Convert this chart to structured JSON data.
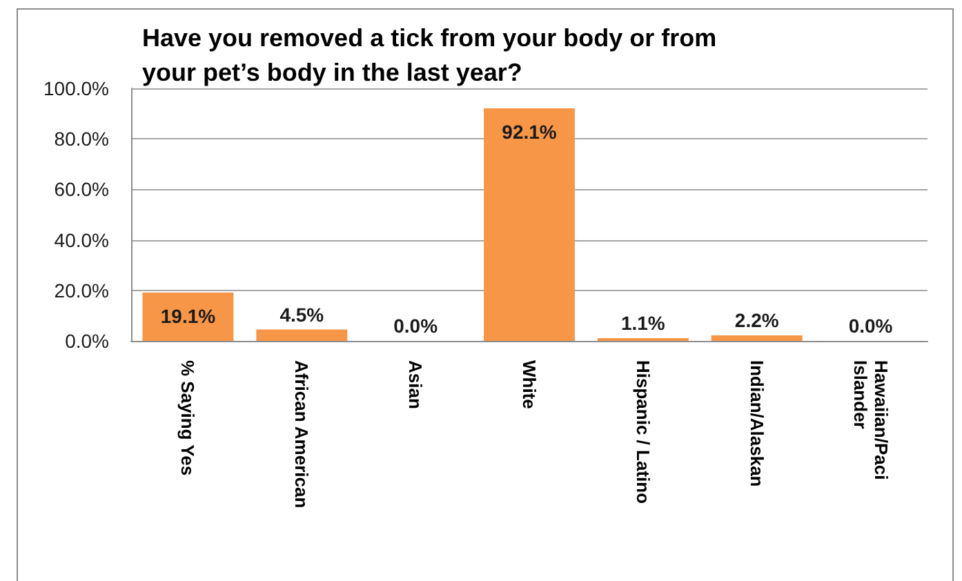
{
  "chart_data": {
    "type": "bar",
    "title": "Have you removed a tick from your body or from your pet’s body in the last year?",
    "categories": [
      "% Saying Yes",
      "African American",
      "Asian",
      "White",
      "Hispanic / Latino",
      "Indian/Alaskan",
      "Hawaiian/Paci Islander"
    ],
    "values": [
      19.1,
      4.5,
      0.0,
      92.1,
      1.1,
      2.2,
      0.0
    ],
    "color": "#f79646",
    "value_labels": [
      "19.1%",
      "4.5%",
      "0.0%",
      "92.1%",
      "1.1%",
      "2.2%",
      "0.0%"
    ],
    "ylim": [
      0,
      100
    ],
    "yticks": [
      {
        "value": 0,
        "label": "0.0%"
      },
      {
        "value": 20,
        "label": "20.0%"
      },
      {
        "value": 40,
        "label": "40.0%"
      },
      {
        "value": 60,
        "label": "60.0%"
      },
      {
        "value": 80,
        "label": "80.0%"
      },
      {
        "value": 100,
        "label": "100.0%"
      }
    ],
    "grid": "y"
  }
}
